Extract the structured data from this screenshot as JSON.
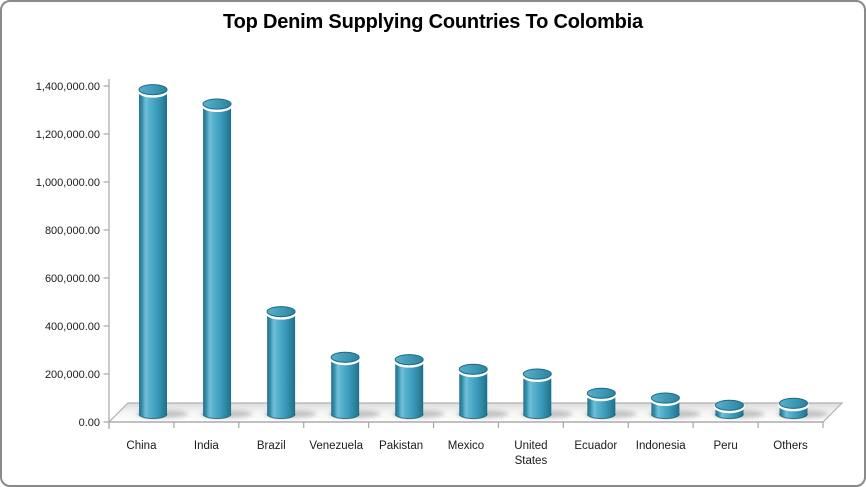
{
  "chart_data": {
    "type": "bar",
    "subtype": "3d-cylinder",
    "title": "Top Denim Supplying Countries To Colombia",
    "categories": [
      "China",
      "India",
      "Brazil",
      "Venezuela",
      "Pakistan",
      "Mexico",
      "United States",
      "Ecuador",
      "Indonesia",
      "Peru",
      "Others"
    ],
    "values": [
      1385000,
      1325000,
      460000,
      270000,
      260000,
      220000,
      200000,
      120000,
      100000,
      70000,
      78000
    ],
    "xlabel": "",
    "ylabel": "",
    "ylim": [
      0,
      1400000
    ],
    "ytick_step": 200000,
    "ytick_labels": [
      "0.00",
      "200,000.00",
      "400,000.00",
      "600,000.00",
      "800,000.00",
      "1,000,000.00",
      "1,200,000.00",
      "1,400,000.00"
    ],
    "grid": false,
    "legend": false,
    "colors": {
      "cylinder_dark": "#1f6e88",
      "cylinder_mid": "#3d9cbd",
      "cylinder_light": "#6fc0d8",
      "cylinder_edge_dark": "#26758f",
      "cylinder_top_light": "#57b1cc",
      "cylinder_top_dark": "#2b83a0",
      "cylinder_top_edge": "#1d6a85",
      "cylinder_bottom_edge": "#155a72",
      "rim_highlight": "#ffffff",
      "axis_line": "#a6a6a6",
      "tick_text": "#1a1a1a",
      "floor_edge": "#b0b0b0",
      "floor_light": "#ffffff",
      "floor_shade": "#dcdcdc",
      "shadow": "#8f8f8f",
      "frame_border": "#8a8a8a",
      "background": "#ffffff",
      "title_color": "#000000"
    }
  }
}
